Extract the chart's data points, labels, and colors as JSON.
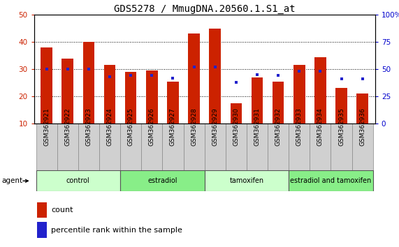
{
  "title": "GDS5278 / MmugDNA.20560.1.S1_at",
  "samples": [
    "GSM362921",
    "GSM362922",
    "GSM362923",
    "GSM362924",
    "GSM362925",
    "GSM362926",
    "GSM362927",
    "GSM362928",
    "GSM362929",
    "GSM362930",
    "GSM362931",
    "GSM362932",
    "GSM362933",
    "GSM362934",
    "GSM362935",
    "GSM362936"
  ],
  "count_values": [
    38,
    34,
    40,
    31.5,
    29,
    29.5,
    25.5,
    43,
    45,
    17.5,
    27,
    25.5,
    31.5,
    34.5,
    23,
    21
  ],
  "percentile_values": [
    50,
    50,
    50,
    43,
    44,
    44,
    42,
    52,
    52,
    38,
    45,
    44,
    48,
    48,
    41,
    41
  ],
  "bar_color": "#cc2200",
  "dot_color": "#2222cc",
  "ylim_left": [
    10,
    50
  ],
  "ylim_right": [
    0,
    100
  ],
  "yticks_left": [
    10,
    20,
    30,
    40,
    50
  ],
  "yticks_right": [
    0,
    25,
    50,
    75,
    100
  ],
  "ytick_labels_right": [
    "0",
    "25",
    "50",
    "75",
    "100%"
  ],
  "groups": [
    {
      "label": "control",
      "start": 0,
      "end": 4,
      "color": "#ccffcc"
    },
    {
      "label": "estradiol",
      "start": 4,
      "end": 8,
      "color": "#88ee88"
    },
    {
      "label": "tamoxifen",
      "start": 8,
      "end": 12,
      "color": "#ccffcc"
    },
    {
      "label": "estradiol and tamoxifen",
      "start": 12,
      "end": 16,
      "color": "#88ee88"
    }
  ],
  "agent_label": "agent",
  "legend_count_label": "count",
  "legend_percentile_label": "percentile rank within the sample",
  "bar_width": 0.55,
  "tick_label_fontsize": 6.5,
  "title_fontsize": 10,
  "left_tick_color": "#cc2200",
  "right_tick_color": "#0000cc",
  "background_color": "#ffffff",
  "plot_bg_color": "#ffffff"
}
